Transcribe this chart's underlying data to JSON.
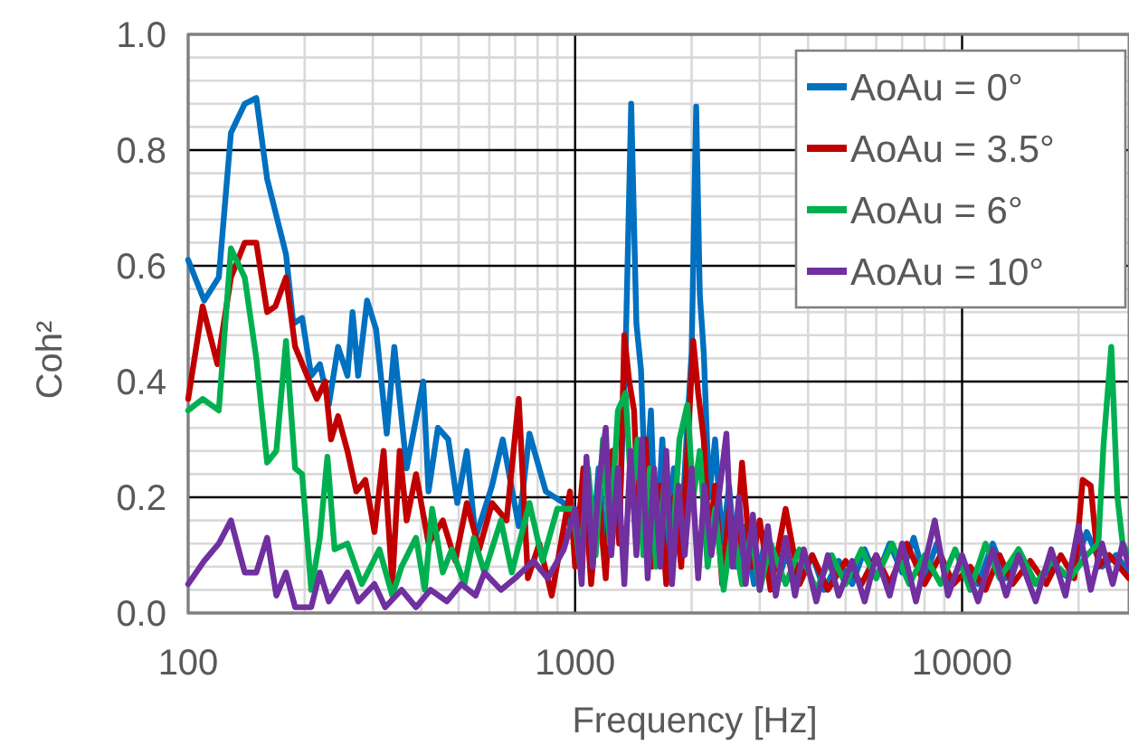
{
  "chart_data": {
    "type": "line",
    "xlabel": "Frequency [Hz]",
    "ylabel": "Coh²",
    "log": "x",
    "xlim": [
      100,
      27000
    ],
    "xticks": [
      100,
      1000,
      10000
    ],
    "ylim": [
      0,
      1
    ],
    "yticks": [
      {
        "value": 0,
        "label": "0.0"
      },
      {
        "value": 0.2,
        "label": "0.2"
      },
      {
        "value": 0.4,
        "label": "0.4"
      },
      {
        "value": 0.6,
        "label": "0.6"
      },
      {
        "value": 0.8,
        "label": "0.8"
      },
      {
        "value": 1,
        "label": "1.0"
      }
    ],
    "grid": true,
    "legend": "top right",
    "marker": "none",
    "line_style": "solid",
    "series": [
      {
        "name": "AoAu = 0°",
        "color": "#0070c0",
        "x": [
          100,
          110,
          120,
          129,
          140,
          150,
          160,
          179,
          187,
          197,
          208,
          219,
          231,
          244,
          258,
          266,
          275,
          290,
          306,
          326,
          341,
          367,
          405,
          418,
          442,
          470,
          496,
          525,
          553,
          610,
          650,
          715,
          762,
          840,
          935,
          1000,
          1050,
          1100,
          1150,
          1200,
          1250,
          1300,
          1350,
          1396,
          1440,
          1480,
          1520,
          1570,
          1620,
          1680,
          1740,
          1800,
          1870,
          1940,
          2000,
          2055,
          2100,
          2150,
          2220,
          2300,
          2400,
          2500,
          2600,
          2750,
          2900,
          3100,
          3300,
          3500,
          3800,
          4100,
          4400,
          4800,
          5200,
          5600,
          6000,
          6500,
          7000,
          7500,
          8000,
          8600,
          9300,
          10000,
          11000,
          12000,
          13000,
          14000,
          15500,
          17000,
          19000,
          21000,
          23000,
          25000,
          27000
        ],
        "values": [
          0.61,
          0.54,
          0.58,
          0.83,
          0.88,
          0.89,
          0.75,
          0.62,
          0.5,
          0.51,
          0.41,
          0.43,
          0.36,
          0.46,
          0.41,
          0.52,
          0.41,
          0.54,
          0.49,
          0.31,
          0.46,
          0.25,
          0.4,
          0.21,
          0.32,
          0.3,
          0.19,
          0.28,
          0.13,
          0.22,
          0.3,
          0.15,
          0.31,
          0.21,
          0.19,
          0.12,
          0.22,
          0.08,
          0.25,
          0.1,
          0.28,
          0.15,
          0.45,
          0.88,
          0.5,
          0.42,
          0.2,
          0.35,
          0.1,
          0.3,
          0.12,
          0.25,
          0.1,
          0.3,
          0.45,
          0.875,
          0.55,
          0.45,
          0.2,
          0.3,
          0.12,
          0.22,
          0.08,
          0.15,
          0.05,
          0.12,
          0.04,
          0.1,
          0.05,
          0.1,
          0.04,
          0.09,
          0.05,
          0.11,
          0.06,
          0.12,
          0.07,
          0.13,
          0.06,
          0.12,
          0.05,
          0.09,
          0.05,
          0.12,
          0.06,
          0.11,
          0.05,
          0.08,
          0.06,
          0.14,
          0.08,
          0.1,
          0.07
        ]
      },
      {
        "name": "AoAu = 3.5°",
        "color": "#c00000",
        "x": [
          100,
          109,
          119,
          129,
          140,
          150,
          160,
          168,
          179,
          189,
          203,
          215,
          226,
          234,
          244,
          258,
          272,
          287,
          303,
          320,
          337,
          352,
          367,
          388,
          418,
          455,
          490,
          525,
          565,
          610,
          665,
          715,
          755,
          808,
          870,
          970,
          1000,
          1050,
          1100,
          1150,
          1200,
          1250,
          1300,
          1340,
          1380,
          1420,
          1460,
          1520,
          1580,
          1650,
          1720,
          1800,
          1880,
          1950,
          2020,
          2080,
          2150,
          2220,
          2300,
          2400,
          2500,
          2600,
          2700,
          2850,
          3000,
          3200,
          3500,
          3800,
          4100,
          4500,
          5000,
          5500,
          6000,
          6500,
          7200,
          8000,
          8800,
          9500,
          10500,
          11500,
          12500,
          13500,
          15000,
          16500,
          18000,
          19500,
          20500,
          21500,
          22500,
          24000,
          27000
        ],
        "values": [
          0.37,
          0.53,
          0.43,
          0.58,
          0.64,
          0.64,
          0.52,
          0.53,
          0.58,
          0.46,
          0.41,
          0.37,
          0.4,
          0.3,
          0.34,
          0.28,
          0.21,
          0.23,
          0.14,
          0.28,
          0.05,
          0.28,
          0.16,
          0.24,
          0.12,
          0.16,
          0.09,
          0.19,
          0.11,
          0.19,
          0.16,
          0.37,
          0.06,
          0.12,
          0.03,
          0.21,
          0.08,
          0.25,
          0.05,
          0.2,
          0.06,
          0.28,
          0.12,
          0.48,
          0.4,
          0.35,
          0.15,
          0.3,
          0.08,
          0.22,
          0.05,
          0.2,
          0.08,
          0.28,
          0.47,
          0.38,
          0.3,
          0.12,
          0.22,
          0.05,
          0.18,
          0.1,
          0.26,
          0.08,
          0.16,
          0.04,
          0.18,
          0.05,
          0.1,
          0.04,
          0.09,
          0.05,
          0.1,
          0.05,
          0.12,
          0.05,
          0.1,
          0.05,
          0.08,
          0.04,
          0.1,
          0.05,
          0.09,
          0.05,
          0.1,
          0.06,
          0.23,
          0.22,
          0.08,
          0.1,
          0.06
        ]
      },
      {
        "name": "AoAu = 6°",
        "color": "#00b050",
        "x": [
          100,
          109,
          120,
          129,
          140,
          150,
          160,
          169,
          179,
          189,
          197,
          208,
          219,
          229,
          239,
          258,
          281,
          312,
          337,
          356,
          388,
          409,
          427,
          455,
          480,
          518,
          547,
          583,
          643,
          686,
          762,
          824,
          899,
          990,
          1030,
          1080,
          1130,
          1180,
          1230,
          1290,
          1350,
          1400,
          1450,
          1500,
          1560,
          1620,
          1700,
          1780,
          1860,
          1950,
          2020,
          2100,
          2200,
          2300,
          2420,
          2550,
          2700,
          2850,
          3000,
          3200,
          3500,
          3800,
          4200,
          4600,
          5000,
          5500,
          6000,
          6600,
          7300,
          8000,
          8800,
          9600,
          10500,
          11500,
          12500,
          14000,
          15500,
          17000,
          19000,
          21000,
          22500,
          23200,
          24300,
          25200,
          26000,
          27000
        ],
        "values": [
          0.35,
          0.37,
          0.35,
          0.63,
          0.58,
          0.44,
          0.26,
          0.28,
          0.47,
          0.25,
          0.24,
          0.04,
          0.13,
          0.27,
          0.11,
          0.12,
          0.05,
          0.11,
          0.03,
          0.08,
          0.13,
          0.04,
          0.18,
          0.07,
          0.11,
          0.05,
          0.13,
          0.07,
          0.16,
          0.07,
          0.19,
          0.09,
          0.18,
          0.18,
          0.08,
          0.25,
          0.1,
          0.3,
          0.12,
          0.35,
          0.38,
          0.2,
          0.3,
          0.1,
          0.25,
          0.08,
          0.22,
          0.1,
          0.3,
          0.36,
          0.2,
          0.28,
          0.08,
          0.18,
          0.04,
          0.15,
          0.05,
          0.14,
          0.04,
          0.12,
          0.05,
          0.11,
          0.04,
          0.1,
          0.05,
          0.11,
          0.06,
          0.12,
          0.05,
          0.1,
          0.05,
          0.11,
          0.04,
          0.12,
          0.06,
          0.11,
          0.05,
          0.09,
          0.06,
          0.1,
          0.12,
          0.29,
          0.46,
          0.2,
          0.12,
          0.1
        ]
      },
      {
        "name": "AoAu = 10°",
        "color": "#7030a0",
        "x": [
          100,
          110,
          120,
          129,
          140,
          150,
          160,
          169,
          179,
          189,
          208,
          219,
          231,
          258,
          275,
          303,
          323,
          356,
          388,
          423,
          466,
          508,
          553,
          583,
          643,
          700,
          780,
          850,
          935,
          1000,
          1040,
          1070,
          1110,
          1150,
          1200,
          1240,
          1290,
          1340,
          1390,
          1440,
          1490,
          1540,
          1600,
          1660,
          1720,
          1780,
          1850,
          1920,
          2000,
          2080,
          2160,
          2250,
          2350,
          2460,
          2550,
          2650,
          2760,
          2880,
          3000,
          3150,
          3300,
          3500,
          3700,
          3900,
          4200,
          4500,
          4800,
          5200,
          5600,
          6000,
          6500,
          7000,
          7600,
          8500,
          9200,
          10000,
          11000,
          12000,
          13000,
          14000,
          15500,
          17000,
          18500,
          20000,
          21500,
          23000,
          24500,
          26000,
          27000
        ],
        "values": [
          0.05,
          0.09,
          0.12,
          0.16,
          0.07,
          0.07,
          0.13,
          0.03,
          0.07,
          0.01,
          0.01,
          0.07,
          0.02,
          0.07,
          0.02,
          0.05,
          0.01,
          0.04,
          0.01,
          0.04,
          0.02,
          0.05,
          0.03,
          0.07,
          0.04,
          0.06,
          0.09,
          0.06,
          0.11,
          0.18,
          0.05,
          0.27,
          0.08,
          0.22,
          0.32,
          0.1,
          0.25,
          0.05,
          0.28,
          0.1,
          0.3,
          0.06,
          0.25,
          0.08,
          0.28,
          0.05,
          0.22,
          0.1,
          0.25,
          0.06,
          0.22,
          0.1,
          0.2,
          0.31,
          0.08,
          0.2,
          0.05,
          0.17,
          0.04,
          0.15,
          0.03,
          0.13,
          0.03,
          0.11,
          0.02,
          0.1,
          0.03,
          0.09,
          0.02,
          0.1,
          0.03,
          0.12,
          0.02,
          0.16,
          0.03,
          0.1,
          0.02,
          0.11,
          0.03,
          0.1,
          0.02,
          0.11,
          0.03,
          0.15,
          0.04,
          0.12,
          0.05,
          0.12,
          0.08
        ]
      }
    ]
  }
}
